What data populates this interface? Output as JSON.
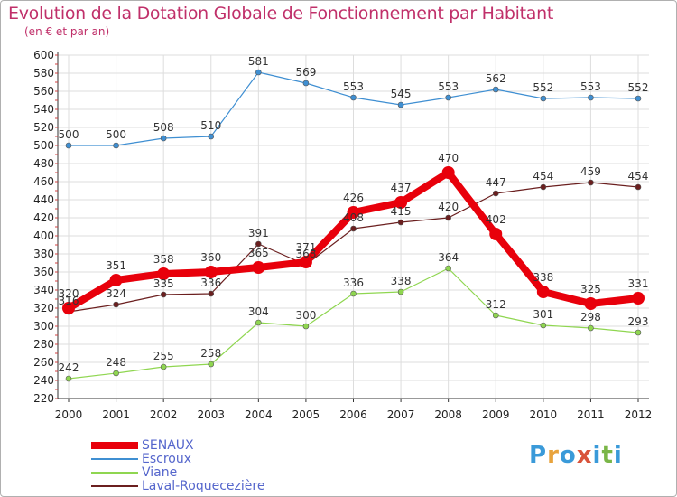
{
  "header": {
    "title": "Evolution de la Dotation Globale de Fonctionnement par Habitant",
    "subtitle": "(en € et par an)"
  },
  "logo": {
    "text": "Proxiti",
    "letters": [
      "P",
      "r",
      "o",
      "x",
      "i",
      "t",
      "i"
    ],
    "colors": [
      "#3a9ad9",
      "#e8a33d",
      "#3a9ad9",
      "#d9533a",
      "#3a9ad9",
      "#7ab648",
      "#3a9ad9"
    ]
  },
  "chart_data": {
    "type": "line",
    "title": "Evolution de la Dotation Globale de Fonctionnement par Habitant",
    "subtitle": "(en € et par an)",
    "xlabel": "",
    "ylabel": "",
    "x": [
      "2000",
      "2001",
      "2002",
      "2003",
      "2004",
      "2005",
      "2006",
      "2007",
      "2008",
      "2009",
      "2010",
      "2011",
      "2012"
    ],
    "ylim": [
      220,
      600
    ],
    "yticks": [
      220,
      240,
      260,
      280,
      300,
      320,
      340,
      360,
      380,
      400,
      420,
      440,
      460,
      480,
      500,
      520,
      540,
      560,
      580,
      600
    ],
    "grid": true,
    "legend_position": "bottom-left",
    "series": [
      {
        "name": "SENAUX",
        "color": "#e8000b",
        "width": "thick",
        "values": [
          320,
          351,
          358,
          360,
          365,
          371,
          426,
          437,
          470,
          402,
          338,
          325,
          331
        ]
      },
      {
        "name": "Escroux",
        "color": "#3f8fd2",
        "width": "thin",
        "values": [
          500,
          500,
          508,
          510,
          581,
          569,
          553,
          545,
          553,
          562,
          552,
          553,
          552
        ]
      },
      {
        "name": "Viane",
        "color": "#8fd650",
        "width": "thin",
        "values": [
          242,
          248,
          255,
          258,
          304,
          300,
          336,
          338,
          364,
          312,
          301,
          298,
          293
        ]
      },
      {
        "name": "Laval-Roquecezière",
        "color": "#6b1f1f",
        "width": "thin",
        "values": [
          316,
          324,
          335,
          336,
          391,
          368,
          408,
          415,
          420,
          447,
          454,
          459,
          454
        ]
      }
    ]
  }
}
